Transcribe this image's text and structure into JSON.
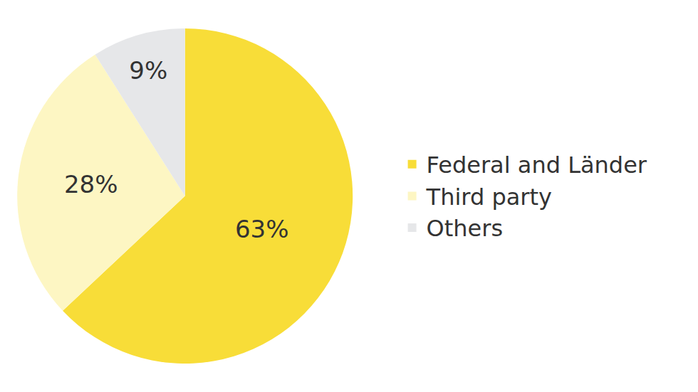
{
  "chart_data": {
    "type": "pie",
    "categories": [
      "Federal and Länder",
      "Third party",
      "Others"
    ],
    "values": [
      63,
      28,
      9
    ],
    "value_labels": [
      "63%",
      "28%",
      "9%"
    ],
    "colors": [
      "#f8dd38",
      "#fdf6c3",
      "#e6e7e9"
    ],
    "data_labels": true,
    "legend": "right"
  }
}
